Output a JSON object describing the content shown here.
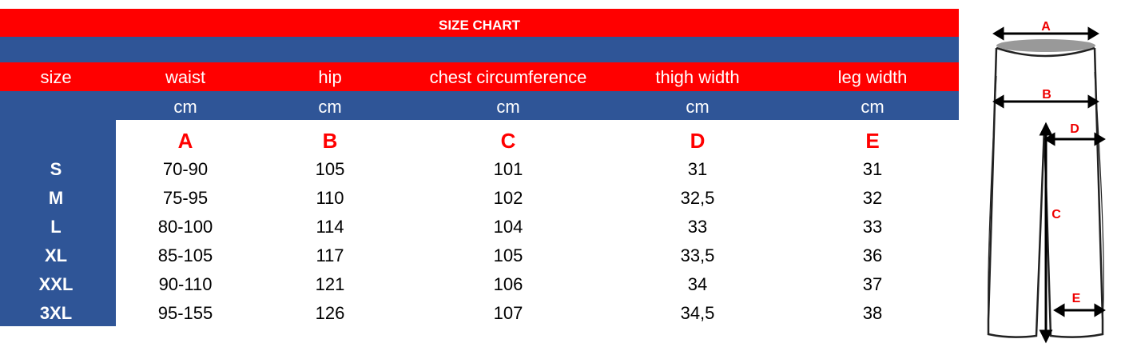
{
  "title": "SIZE CHART",
  "headers": [
    "size",
    "waist",
    "hip",
    "chest circumference",
    "thigh width",
    "leg width"
  ],
  "units": [
    "",
    "cm",
    "cm",
    "cm",
    "cm",
    "cm"
  ],
  "letters": [
    "",
    "A",
    "B",
    "C",
    "D",
    "E"
  ],
  "rows": [
    [
      "S",
      "70-90",
      "105",
      "101",
      "31",
      "31"
    ],
    [
      "M",
      "75-95",
      "110",
      "102",
      "32,5",
      "32"
    ],
    [
      "L",
      "80-100",
      "114",
      "104",
      "33",
      "33"
    ],
    [
      "XL",
      "85-105",
      "117",
      "105",
      "33,5",
      "36"
    ],
    [
      "XXL",
      "90-110",
      "121",
      "106",
      "34",
      "37"
    ],
    [
      "3XL",
      "95-155",
      "126",
      "107",
      "34,5",
      "38"
    ]
  ],
  "diagram": {
    "labels": [
      "A",
      "B",
      "C",
      "D",
      "E"
    ]
  },
  "colors": {
    "red": "#ff0000",
    "blue": "#2f5597"
  }
}
